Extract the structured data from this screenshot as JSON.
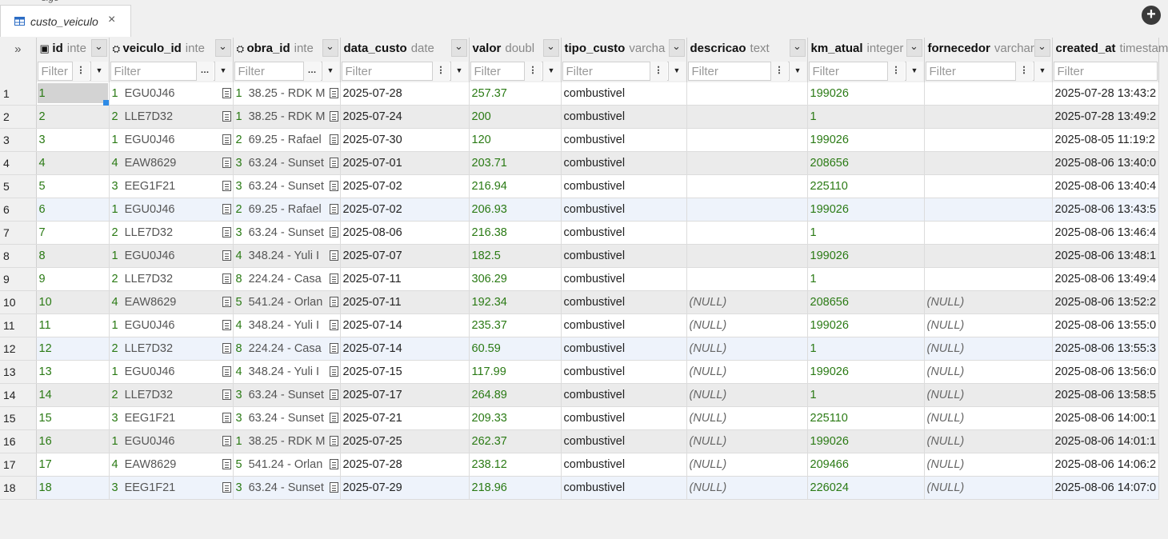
{
  "prev_tab": {
    "label": "sige"
  },
  "tab": {
    "label": "custo_veiculo",
    "close": "×",
    "icon": "table-icon"
  },
  "add_button": {
    "label": "+"
  },
  "corner": {
    "label": "»"
  },
  "columns": [
    {
      "name": "id",
      "type": "inte",
      "icon": "key-icon"
    },
    {
      "name": "veiculo_id",
      "type": "inte",
      "icon": "fk-icon"
    },
    {
      "name": "obra_id",
      "type": "inte",
      "icon": "fk-icon"
    },
    {
      "name": "data_custo",
      "type": "date"
    },
    {
      "name": "valor",
      "type": "doubl"
    },
    {
      "name": "tipo_custo",
      "type": "varcha"
    },
    {
      "name": "descricao",
      "type": "text"
    },
    {
      "name": "km_atual",
      "type": "integer"
    },
    {
      "name": "fornecedor",
      "type": "varchar"
    },
    {
      "name": "created_at",
      "type": "timestam"
    }
  ],
  "filter_placeholder": "Filter",
  "null_text": "(NULL)",
  "rows": [
    {
      "n": "1",
      "id": "1",
      "veiculo_id": "1",
      "veiculo": "EGU0J46",
      "obra_id": "1",
      "obra": "38.25 - RDK M",
      "data_custo": "2025-07-28",
      "valor": "257.37",
      "tipo_custo": "combustivel",
      "descricao": "",
      "km_atual": "199026",
      "fornecedor": "",
      "created_at": "2025-07-28 13:43:2"
    },
    {
      "n": "2",
      "id": "2",
      "veiculo_id": "2",
      "veiculo": "LLE7D32",
      "obra_id": "1",
      "obra": "38.25 - RDK M",
      "data_custo": "2025-07-24",
      "valor": "200",
      "tipo_custo": "combustivel",
      "descricao": "",
      "km_atual": "1",
      "fornecedor": "",
      "created_at": "2025-07-28 13:49:2"
    },
    {
      "n": "3",
      "id": "3",
      "veiculo_id": "1",
      "veiculo": "EGU0J46",
      "obra_id": "2",
      "obra": "69.25 - Rafael",
      "data_custo": "2025-07-30",
      "valor": "120",
      "tipo_custo": "combustivel",
      "descricao": "",
      "km_atual": "199026",
      "fornecedor": "",
      "created_at": "2025-08-05 11:19:2"
    },
    {
      "n": "4",
      "id": "4",
      "veiculo_id": "4",
      "veiculo": "EAW8629",
      "obra_id": "3",
      "obra": "63.24 - Sunset",
      "data_custo": "2025-07-01",
      "valor": "203.71",
      "tipo_custo": "combustivel",
      "descricao": "",
      "km_atual": "208656",
      "fornecedor": "",
      "created_at": "2025-08-06 13:40:0"
    },
    {
      "n": "5",
      "id": "5",
      "veiculo_id": "3",
      "veiculo": "EEG1F21",
      "obra_id": "3",
      "obra": "63.24 - Sunset",
      "data_custo": "2025-07-02",
      "valor": "216.94",
      "tipo_custo": "combustivel",
      "descricao": "",
      "km_atual": "225110",
      "fornecedor": "",
      "created_at": "2025-08-06 13:40:4"
    },
    {
      "n": "6",
      "id": "6",
      "veiculo_id": "1",
      "veiculo": "EGU0J46",
      "obra_id": "2",
      "obra": "69.25 - Rafael",
      "data_custo": "2025-07-02",
      "valor": "206.93",
      "tipo_custo": "combustivel",
      "descricao": "",
      "km_atual": "199026",
      "fornecedor": "",
      "created_at": "2025-08-06 13:43:5"
    },
    {
      "n": "7",
      "id": "7",
      "veiculo_id": "2",
      "veiculo": "LLE7D32",
      "obra_id": "3",
      "obra": "63.24 - Sunset",
      "data_custo": "2025-08-06",
      "valor": "216.38",
      "tipo_custo": "combustivel",
      "descricao": "",
      "km_atual": "1",
      "fornecedor": "",
      "created_at": "2025-08-06 13:46:4"
    },
    {
      "n": "8",
      "id": "8",
      "veiculo_id": "1",
      "veiculo": "EGU0J46",
      "obra_id": "4",
      "obra": "348.24 - Yuli I",
      "data_custo": "2025-07-07",
      "valor": "182.5",
      "tipo_custo": "combustivel",
      "descricao": "",
      "km_atual": "199026",
      "fornecedor": "",
      "created_at": "2025-08-06 13:48:1"
    },
    {
      "n": "9",
      "id": "9",
      "veiculo_id": "2",
      "veiculo": "LLE7D32",
      "obra_id": "8",
      "obra": "224.24 - Casa",
      "data_custo": "2025-07-11",
      "valor": "306.29",
      "tipo_custo": "combustivel",
      "descricao": "",
      "km_atual": "1",
      "fornecedor": "",
      "created_at": "2025-08-06 13:49:4"
    },
    {
      "n": "10",
      "id": "10",
      "veiculo_id": "4",
      "veiculo": "EAW8629",
      "obra_id": "5",
      "obra": "541.24 - Orlan",
      "data_custo": "2025-07-11",
      "valor": "192.34",
      "tipo_custo": "combustivel",
      "descricao": "(NULL)",
      "km_atual": "208656",
      "fornecedor": "(NULL)",
      "created_at": "2025-08-06 13:52:2"
    },
    {
      "n": "11",
      "id": "11",
      "veiculo_id": "1",
      "veiculo": "EGU0J46",
      "obra_id": "4",
      "obra": "348.24 - Yuli I",
      "data_custo": "2025-07-14",
      "valor": "235.37",
      "tipo_custo": "combustivel",
      "descricao": "(NULL)",
      "km_atual": "199026",
      "fornecedor": "(NULL)",
      "created_at": "2025-08-06 13:55:0"
    },
    {
      "n": "12",
      "id": "12",
      "veiculo_id": "2",
      "veiculo": "LLE7D32",
      "obra_id": "8",
      "obra": "224.24 - Casa",
      "data_custo": "2025-07-14",
      "valor": "60.59",
      "tipo_custo": "combustivel",
      "descricao": "(NULL)",
      "km_atual": "1",
      "fornecedor": "(NULL)",
      "created_at": "2025-08-06 13:55:3"
    },
    {
      "n": "13",
      "id": "13",
      "veiculo_id": "1",
      "veiculo": "EGU0J46",
      "obra_id": "4",
      "obra": "348.24 - Yuli I",
      "data_custo": "2025-07-15",
      "valor": "117.99",
      "tipo_custo": "combustivel",
      "descricao": "(NULL)",
      "km_atual": "199026",
      "fornecedor": "(NULL)",
      "created_at": "2025-08-06 13:56:0"
    },
    {
      "n": "14",
      "id": "14",
      "veiculo_id": "2",
      "veiculo": "LLE7D32",
      "obra_id": "3",
      "obra": "63.24 - Sunset",
      "data_custo": "2025-07-17",
      "valor": "264.89",
      "tipo_custo": "combustivel",
      "descricao": "(NULL)",
      "km_atual": "1",
      "fornecedor": "(NULL)",
      "created_at": "2025-08-06 13:58:5"
    },
    {
      "n": "15",
      "id": "15",
      "veiculo_id": "3",
      "veiculo": "EEG1F21",
      "obra_id": "3",
      "obra": "63.24 - Sunset",
      "data_custo": "2025-07-21",
      "valor": "209.33",
      "tipo_custo": "combustivel",
      "descricao": "(NULL)",
      "km_atual": "225110",
      "fornecedor": "(NULL)",
      "created_at": "2025-08-06 14:00:1"
    },
    {
      "n": "16",
      "id": "16",
      "veiculo_id": "1",
      "veiculo": "EGU0J46",
      "obra_id": "1",
      "obra": "38.25 - RDK M",
      "data_custo": "2025-07-25",
      "valor": "262.37",
      "tipo_custo": "combustivel",
      "descricao": "(NULL)",
      "km_atual": "199026",
      "fornecedor": "(NULL)",
      "created_at": "2025-08-06 14:01:1"
    },
    {
      "n": "17",
      "id": "17",
      "veiculo_id": "4",
      "veiculo": "EAW8629",
      "obra_id": "5",
      "obra": "541.24 - Orlan",
      "data_custo": "2025-07-28",
      "valor": "238.12",
      "tipo_custo": "combustivel",
      "descricao": "(NULL)",
      "km_atual": "209466",
      "fornecedor": "(NULL)",
      "created_at": "2025-08-06 14:06:2"
    },
    {
      "n": "18",
      "id": "18",
      "veiculo_id": "3",
      "veiculo": "EEG1F21",
      "obra_id": "3",
      "obra": "63.24 - Sunset",
      "data_custo": "2025-07-29",
      "valor": "218.96",
      "tipo_custo": "combustivel",
      "descricao": "(NULL)",
      "km_atual": "226024",
      "fornecedor": "(NULL)",
      "created_at": "2025-08-06 14:07:0"
    }
  ]
}
